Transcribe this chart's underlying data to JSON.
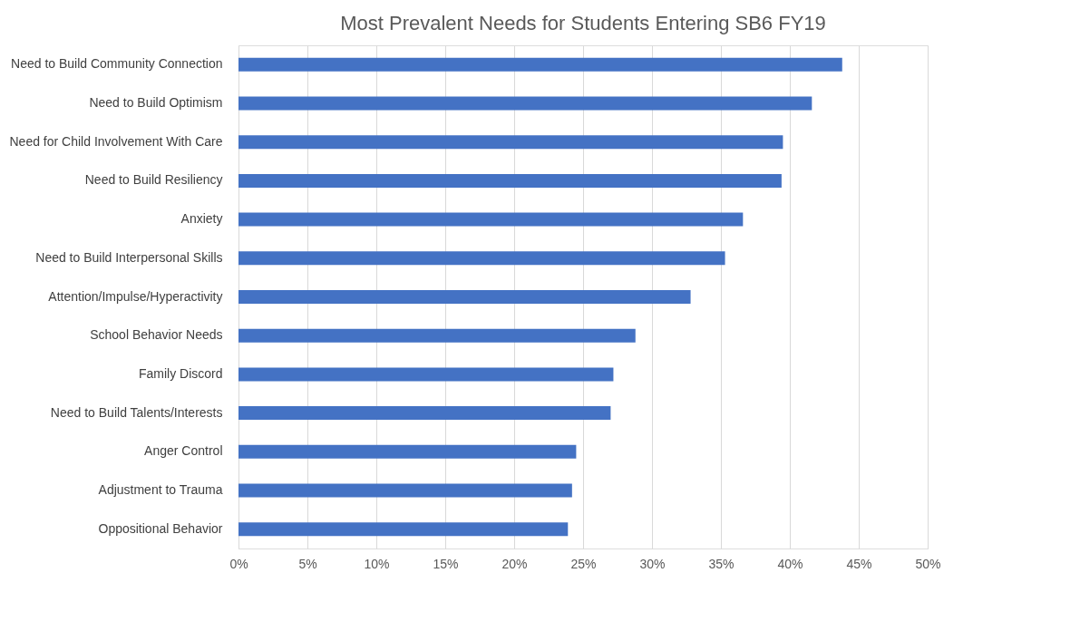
{
  "chart_data": {
    "type": "bar",
    "orientation": "horizontal",
    "title": "Most Prevalent Needs for Students Entering SB6 FY19",
    "categories": [
      "Need to Build Community Connection",
      "Need to Build Optimism",
      "Need for Child Involvement With Care",
      "Need to Build Resiliency",
      "Anxiety",
      "Need to Build Interpersonal Skills",
      "Attention/Impulse/Hyperactivity",
      "School Behavior Needs",
      "Family Discord",
      "Need to Build Talents/Interests",
      "Anger Control",
      "Adjustment to Trauma",
      "Oppositional Behavior"
    ],
    "values": [
      43.8,
      41.6,
      39.5,
      39.4,
      36.6,
      35.3,
      32.8,
      28.8,
      27.2,
      27.0,
      24.5,
      24.2,
      23.9
    ],
    "color": "#4472c4",
    "xlim": [
      0,
      50
    ],
    "xticks": [
      {
        "value": 0,
        "label": "0%"
      },
      {
        "value": 5,
        "label": "5%"
      },
      {
        "value": 10,
        "label": "10%"
      },
      {
        "value": 15,
        "label": "15%"
      },
      {
        "value": 20,
        "label": "20%"
      },
      {
        "value": 25,
        "label": "25%"
      },
      {
        "value": 30,
        "label": "30%"
      },
      {
        "value": 35,
        "label": "35%"
      },
      {
        "value": 40,
        "label": "40%"
      },
      {
        "value": 45,
        "label": "45%"
      },
      {
        "value": 50,
        "label": "50%"
      }
    ],
    "grid": "x"
  }
}
